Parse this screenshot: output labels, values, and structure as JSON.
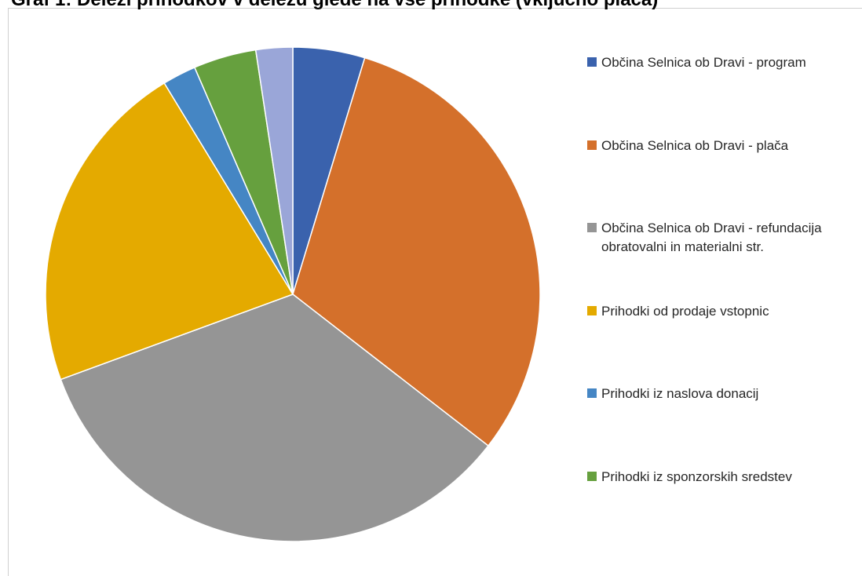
{
  "chart_data": {
    "type": "pie",
    "title": "Graf 1: Deleži prihodkov v deležu glede na vse prihodke (vključno plača)",
    "categories": [
      "Občina Selnica ob Dravi - program",
      "Občina Selnica ob Dravi - plača",
      "Občina Selnica ob Dravi - refundacija obratovalni in materialni str.",
      "Prihodki od prodaje vstopnic",
      "Prihodki iz naslova donacij",
      "Prihodki iz sponzorskih sredstev",
      null
    ],
    "values": [
      4.7,
      30.8,
      33.9,
      21.9,
      2.2,
      4.1,
      2.4
    ],
    "colors": [
      "#3a62ad",
      "#d4702b",
      "#959595",
      "#e4aa00",
      "#4586c4",
      "#66a03e",
      "#9aa6d8"
    ],
    "legend": "right"
  }
}
